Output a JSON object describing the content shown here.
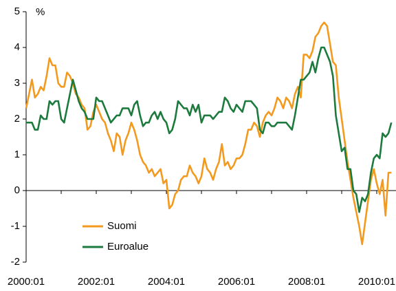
{
  "chart_data": {
    "type": "line",
    "y_label": "%",
    "categories": [
      "2000:01",
      null,
      null,
      null,
      null,
      null,
      null,
      null,
      null,
      null,
      null,
      null,
      null,
      null,
      null,
      null,
      null,
      null,
      null,
      null,
      null,
      null,
      null,
      null,
      "2002:01",
      null,
      null,
      null,
      null,
      null,
      null,
      null,
      null,
      null,
      null,
      null,
      null,
      null,
      null,
      null,
      null,
      null,
      null,
      null,
      null,
      null,
      null,
      null,
      "2004:01",
      null,
      null,
      null,
      null,
      null,
      null,
      null,
      null,
      null,
      null,
      null,
      null,
      null,
      null,
      null,
      null,
      null,
      null,
      null,
      null,
      null,
      null,
      null,
      "2006:01",
      null,
      null,
      null,
      null,
      null,
      null,
      null,
      null,
      null,
      null,
      null,
      null,
      null,
      null,
      null,
      null,
      null,
      null,
      null,
      null,
      null,
      null,
      null,
      "2008:01",
      null,
      null,
      null,
      null,
      null,
      null,
      null,
      null,
      null,
      null,
      null,
      null,
      null,
      null,
      null,
      null,
      null,
      null,
      null,
      null,
      null,
      null,
      null,
      "2010:01",
      null,
      null,
      null,
      null,
      null
    ],
    "series": [
      {
        "name": "Suomi",
        "color": "#f39a1e",
        "values": [
          2.3,
          2.7,
          3.1,
          2.6,
          2.7,
          2.9,
          2.8,
          3.2,
          3.7,
          3.5,
          3.5,
          3.0,
          2.9,
          2.9,
          3.3,
          3.2,
          3.0,
          2.7,
          2.6,
          2.4,
          2.3,
          1.7,
          1.8,
          2.2,
          2.4,
          2.2,
          2.0,
          1.9,
          1.6,
          1.4,
          1.1,
          1.6,
          1.5,
          1.0,
          1.4,
          1.6,
          1.9,
          1.7,
          1.4,
          1.0,
          0.8,
          0.7,
          0.5,
          0.6,
          0.4,
          0.5,
          0.6,
          0.2,
          0.3,
          -0.5,
          -0.4,
          -0.1,
          0.0,
          0.3,
          0.4,
          0.4,
          0.7,
          0.5,
          0.4,
          0.2,
          0.4,
          0.9,
          0.6,
          0.5,
          0.3,
          0.6,
          0.8,
          1.3,
          0.7,
          0.8,
          0.6,
          0.7,
          0.9,
          0.9,
          1.0,
          1.3,
          1.7,
          1.7,
          1.9,
          1.8,
          1.5,
          1.9,
          2.1,
          2.2,
          2.1,
          2.3,
          2.6,
          2.5,
          2.3,
          2.6,
          2.5,
          2.3,
          2.7,
          2.9,
          2.6,
          3.8,
          3.8,
          3.7,
          3.9,
          4.3,
          4.4,
          4.6,
          4.7,
          4.6,
          4.1,
          3.6,
          3.5,
          2.6,
          2.0,
          1.4,
          0.8,
          0.3,
          -0.2,
          -0.6,
          -1.0,
          -1.5,
          -0.9,
          -0.3,
          0.3,
          0.6,
          0.2,
          -0.1,
          0.3,
          -0.7,
          0.5,
          0.5
        ]
      },
      {
        "name": "Euroalue",
        "color": "#1b7a3c",
        "values": [
          1.9,
          1.9,
          1.9,
          1.7,
          1.7,
          2.1,
          2.0,
          2.0,
          2.5,
          2.4,
          2.5,
          2.5,
          2.0,
          1.9,
          2.3,
          2.7,
          3.1,
          2.8,
          2.5,
          2.3,
          2.2,
          2.0,
          2.0,
          2.0,
          2.6,
          2.5,
          2.5,
          2.3,
          2.1,
          1.9,
          2.0,
          2.1,
          2.1,
          2.3,
          2.3,
          2.3,
          2.1,
          2.4,
          2.5,
          2.1,
          1.8,
          1.9,
          1.9,
          2.1,
          2.2,
          2.0,
          2.2,
          2.0,
          1.9,
          1.6,
          1.7,
          2.0,
          2.5,
          2.4,
          2.3,
          2.3,
          2.1,
          2.4,
          2.2,
          2.4,
          1.9,
          2.1,
          2.1,
          2.1,
          2.0,
          2.1,
          2.2,
          2.2,
          2.6,
          2.5,
          2.3,
          2.2,
          2.4,
          2.3,
          2.2,
          2.5,
          2.5,
          2.5,
          2.4,
          2.3,
          1.7,
          1.6,
          1.9,
          1.9,
          1.8,
          1.8,
          1.9,
          1.9,
          1.9,
          1.9,
          1.8,
          1.7,
          2.1,
          2.6,
          3.1,
          3.1,
          3.2,
          3.3,
          3.6,
          3.3,
          3.7,
          4.0,
          4.0,
          3.8,
          3.6,
          3.2,
          2.1,
          1.6,
          1.1,
          1.2,
          0.6,
          0.6,
          0.0,
          -0.1,
          -0.6,
          -0.2,
          -0.3,
          -0.1,
          0.5,
          0.9,
          1.0,
          0.9,
          1.6,
          1.5,
          1.6,
          1.9
        ]
      }
    ],
    "ylim": [
      -2,
      5
    ],
    "yticks": [
      -2,
      -1,
      0,
      1,
      2,
      3,
      4,
      5
    ],
    "legend": "lower left"
  }
}
